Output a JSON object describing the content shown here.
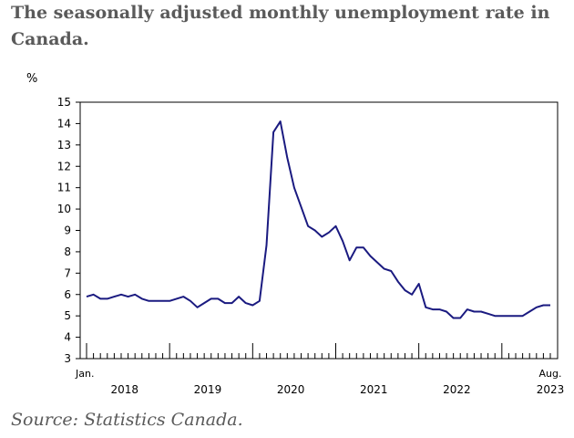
{
  "title": "The seasonally adjusted monthly unemployment rate in Canada.",
  "source": "Source: Statistics Canada.",
  "colors": {
    "line": "#1a1a80",
    "axis": "#000000",
    "title": "#5a5a5a"
  },
  "chart_data": {
    "type": "line",
    "ylabel": "%",
    "ylim": [
      3,
      15
    ],
    "yticks": [
      "3",
      "4",
      "5",
      "6",
      "7",
      "8",
      "9",
      "10",
      "11",
      "12",
      "13",
      "14",
      "15"
    ],
    "x_start_label": "Jan.",
    "x_end_label": "Aug.",
    "year_labels": [
      "2018",
      "2019",
      "2020",
      "2021",
      "2022",
      "2023"
    ],
    "grid": false,
    "series": [
      {
        "start": "2018-01",
        "end": "2023-08",
        "values": [
          5.9,
          6.0,
          5.8,
          5.8,
          5.9,
          6.0,
          5.9,
          6.0,
          5.8,
          5.7,
          5.7,
          5.7,
          5.7,
          5.8,
          5.9,
          5.7,
          5.4,
          5.6,
          5.8,
          5.8,
          5.6,
          5.6,
          5.9,
          5.6,
          5.5,
          5.7,
          8.3,
          13.6,
          14.1,
          12.4,
          11.0,
          10.1,
          9.2,
          9.0,
          8.7,
          8.9,
          9.2,
          8.5,
          7.6,
          8.2,
          8.2,
          7.8,
          7.5,
          7.2,
          7.1,
          6.6,
          6.2,
          6.0,
          6.5,
          5.4,
          5.3,
          5.3,
          5.2,
          4.9,
          4.9,
          5.3,
          5.2,
          5.2,
          5.1,
          5.0,
          5.0,
          5.0,
          5.0,
          5.0,
          5.2,
          5.4,
          5.5,
          5.5
        ]
      }
    ]
  }
}
